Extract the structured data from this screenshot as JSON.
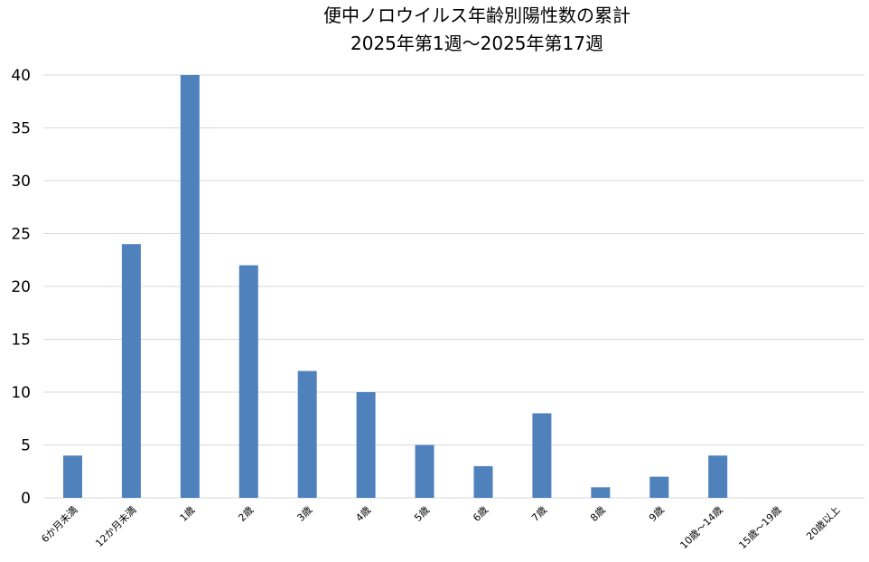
{
  "chart_data": {
    "type": "bar",
    "title": "便中ノロウイルス年齢別陽性数の累計",
    "subtitle": "2025年第1週～2025年第17週",
    "xlabel": "",
    "ylabel": "",
    "categories": [
      "6か月未満",
      "12か月未満",
      "1歳",
      "2歳",
      "3歳",
      "4歳",
      "5歳",
      "6歳",
      "7歳",
      "8歳",
      "9歳",
      "10歳～14歳",
      "15歳～19歳",
      "20歳以上"
    ],
    "values": [
      4,
      24,
      40,
      22,
      12,
      10,
      5,
      3,
      8,
      1,
      2,
      4,
      0,
      0
    ],
    "ylim": [
      0,
      40
    ],
    "yticks": [
      "0",
      "5",
      "10",
      "15",
      "20",
      "25",
      "30",
      "35",
      "40"
    ],
    "grid": true,
    "legend": "none",
    "bar_color": "#4f81bd",
    "grid_color": "#d9d9d9"
  }
}
